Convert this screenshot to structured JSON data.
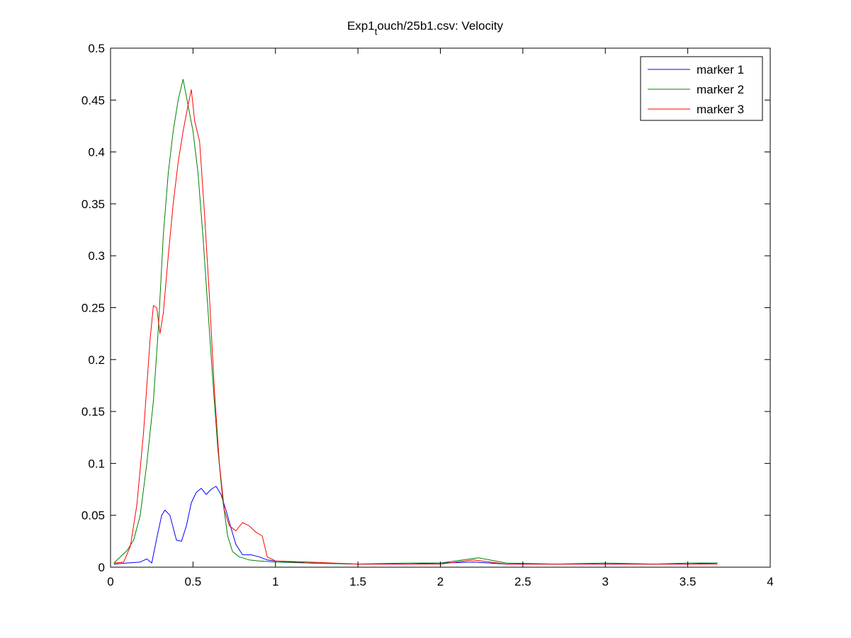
{
  "chart_data": {
    "type": "line",
    "title": "Exp1_touch/25b1.csv: Velocity",
    "title_parts": {
      "before": "Exp1",
      "subscript": "t",
      "after": "ouch/25b1.csv: Velocity"
    },
    "xlabel": "",
    "ylabel": "",
    "xlim": [
      0,
      4
    ],
    "ylim": [
      0,
      0.5
    ],
    "x_ticks": [
      0,
      0.5,
      1,
      1.5,
      2,
      2.5,
      3,
      3.5,
      4
    ],
    "x_tick_labels": [
      "0",
      "0.5",
      "1",
      "1.5",
      "2",
      "2.5",
      "3",
      "3.5",
      "4"
    ],
    "y_ticks": [
      0,
      0.05,
      0.1,
      0.15,
      0.2,
      0.25,
      0.3,
      0.35,
      0.4,
      0.45,
      0.5
    ],
    "y_tick_labels": [
      "0",
      "0.05",
      "0.1",
      "0.15",
      "0.2",
      "0.25",
      "0.3",
      "0.35",
      "0.4",
      "0.45",
      "0.5"
    ],
    "grid": false,
    "legend_position": "top-right",
    "series": [
      {
        "name": "marker 1",
        "color": "#0000ff",
        "points": [
          [
            0.02,
            0.003
          ],
          [
            0.1,
            0.004
          ],
          [
            0.18,
            0.005
          ],
          [
            0.22,
            0.008
          ],
          [
            0.25,
            0.004
          ],
          [
            0.28,
            0.028
          ],
          [
            0.31,
            0.05
          ],
          [
            0.33,
            0.055
          ],
          [
            0.36,
            0.05
          ],
          [
            0.38,
            0.038
          ],
          [
            0.4,
            0.026
          ],
          [
            0.43,
            0.025
          ],
          [
            0.46,
            0.04
          ],
          [
            0.49,
            0.062
          ],
          [
            0.52,
            0.072
          ],
          [
            0.55,
            0.076
          ],
          [
            0.58,
            0.07
          ],
          [
            0.61,
            0.075
          ],
          [
            0.64,
            0.078
          ],
          [
            0.67,
            0.07
          ],
          [
            0.7,
            0.055
          ],
          [
            0.73,
            0.038
          ],
          [
            0.76,
            0.022
          ],
          [
            0.8,
            0.012
          ],
          [
            0.85,
            0.012
          ],
          [
            0.9,
            0.01
          ],
          [
            0.95,
            0.007
          ],
          [
            1.0,
            0.006
          ],
          [
            1.2,
            0.004
          ],
          [
            1.5,
            0.003
          ],
          [
            1.8,
            0.003
          ],
          [
            2.0,
            0.004
          ],
          [
            2.2,
            0.005
          ],
          [
            2.4,
            0.003
          ],
          [
            2.7,
            0.003
          ],
          [
            3.0,
            0.003
          ],
          [
            3.3,
            0.003
          ],
          [
            3.5,
            0.003
          ],
          [
            3.68,
            0.004
          ]
        ]
      },
      {
        "name": "marker 2",
        "color": "#008000",
        "points": [
          [
            0.02,
            0.004
          ],
          [
            0.06,
            0.01
          ],
          [
            0.1,
            0.016
          ],
          [
            0.14,
            0.026
          ],
          [
            0.18,
            0.05
          ],
          [
            0.22,
            0.1
          ],
          [
            0.26,
            0.16
          ],
          [
            0.29,
            0.23
          ],
          [
            0.32,
            0.32
          ],
          [
            0.35,
            0.38
          ],
          [
            0.38,
            0.42
          ],
          [
            0.41,
            0.45
          ],
          [
            0.44,
            0.47
          ],
          [
            0.47,
            0.445
          ],
          [
            0.5,
            0.42
          ],
          [
            0.53,
            0.38
          ],
          [
            0.56,
            0.32
          ],
          [
            0.59,
            0.25
          ],
          [
            0.62,
            0.18
          ],
          [
            0.65,
            0.115
          ],
          [
            0.68,
            0.065
          ],
          [
            0.71,
            0.03
          ],
          [
            0.74,
            0.015
          ],
          [
            0.78,
            0.01
          ],
          [
            0.84,
            0.007
          ],
          [
            0.9,
            0.006
          ],
          [
            1.0,
            0.005
          ],
          [
            1.2,
            0.004
          ],
          [
            1.5,
            0.003
          ],
          [
            1.8,
            0.004
          ],
          [
            2.0,
            0.004
          ],
          [
            2.23,
            0.009
          ],
          [
            2.4,
            0.004
          ],
          [
            2.7,
            0.003
          ],
          [
            3.0,
            0.004
          ],
          [
            3.3,
            0.003
          ],
          [
            3.5,
            0.004
          ],
          [
            3.68,
            0.004
          ]
        ]
      },
      {
        "name": "marker 3",
        "color": "#ff0000",
        "points": [
          [
            0.02,
            0.004
          ],
          [
            0.08,
            0.005
          ],
          [
            0.12,
            0.02
          ],
          [
            0.16,
            0.06
          ],
          [
            0.2,
            0.13
          ],
          [
            0.24,
            0.22
          ],
          [
            0.26,
            0.252
          ],
          [
            0.28,
            0.25
          ],
          [
            0.3,
            0.225
          ],
          [
            0.32,
            0.245
          ],
          [
            0.35,
            0.3
          ],
          [
            0.38,
            0.35
          ],
          [
            0.41,
            0.39
          ],
          [
            0.44,
            0.42
          ],
          [
            0.47,
            0.445
          ],
          [
            0.49,
            0.46
          ],
          [
            0.51,
            0.43
          ],
          [
            0.54,
            0.41
          ],
          [
            0.57,
            0.34
          ],
          [
            0.6,
            0.26
          ],
          [
            0.63,
            0.17
          ],
          [
            0.66,
            0.1
          ],
          [
            0.69,
            0.055
          ],
          [
            0.72,
            0.04
          ],
          [
            0.76,
            0.035
          ],
          [
            0.8,
            0.043
          ],
          [
            0.84,
            0.04
          ],
          [
            0.88,
            0.034
          ],
          [
            0.92,
            0.03
          ],
          [
            0.95,
            0.01
          ],
          [
            1.0,
            0.006
          ],
          [
            1.2,
            0.005
          ],
          [
            1.5,
            0.003
          ],
          [
            1.8,
            0.003
          ],
          [
            2.0,
            0.003
          ],
          [
            2.2,
            0.007
          ],
          [
            2.4,
            0.003
          ],
          [
            2.7,
            0.003
          ],
          [
            3.0,
            0.003
          ],
          [
            3.3,
            0.003
          ],
          [
            3.5,
            0.003
          ],
          [
            3.68,
            0.003
          ]
        ]
      }
    ]
  }
}
